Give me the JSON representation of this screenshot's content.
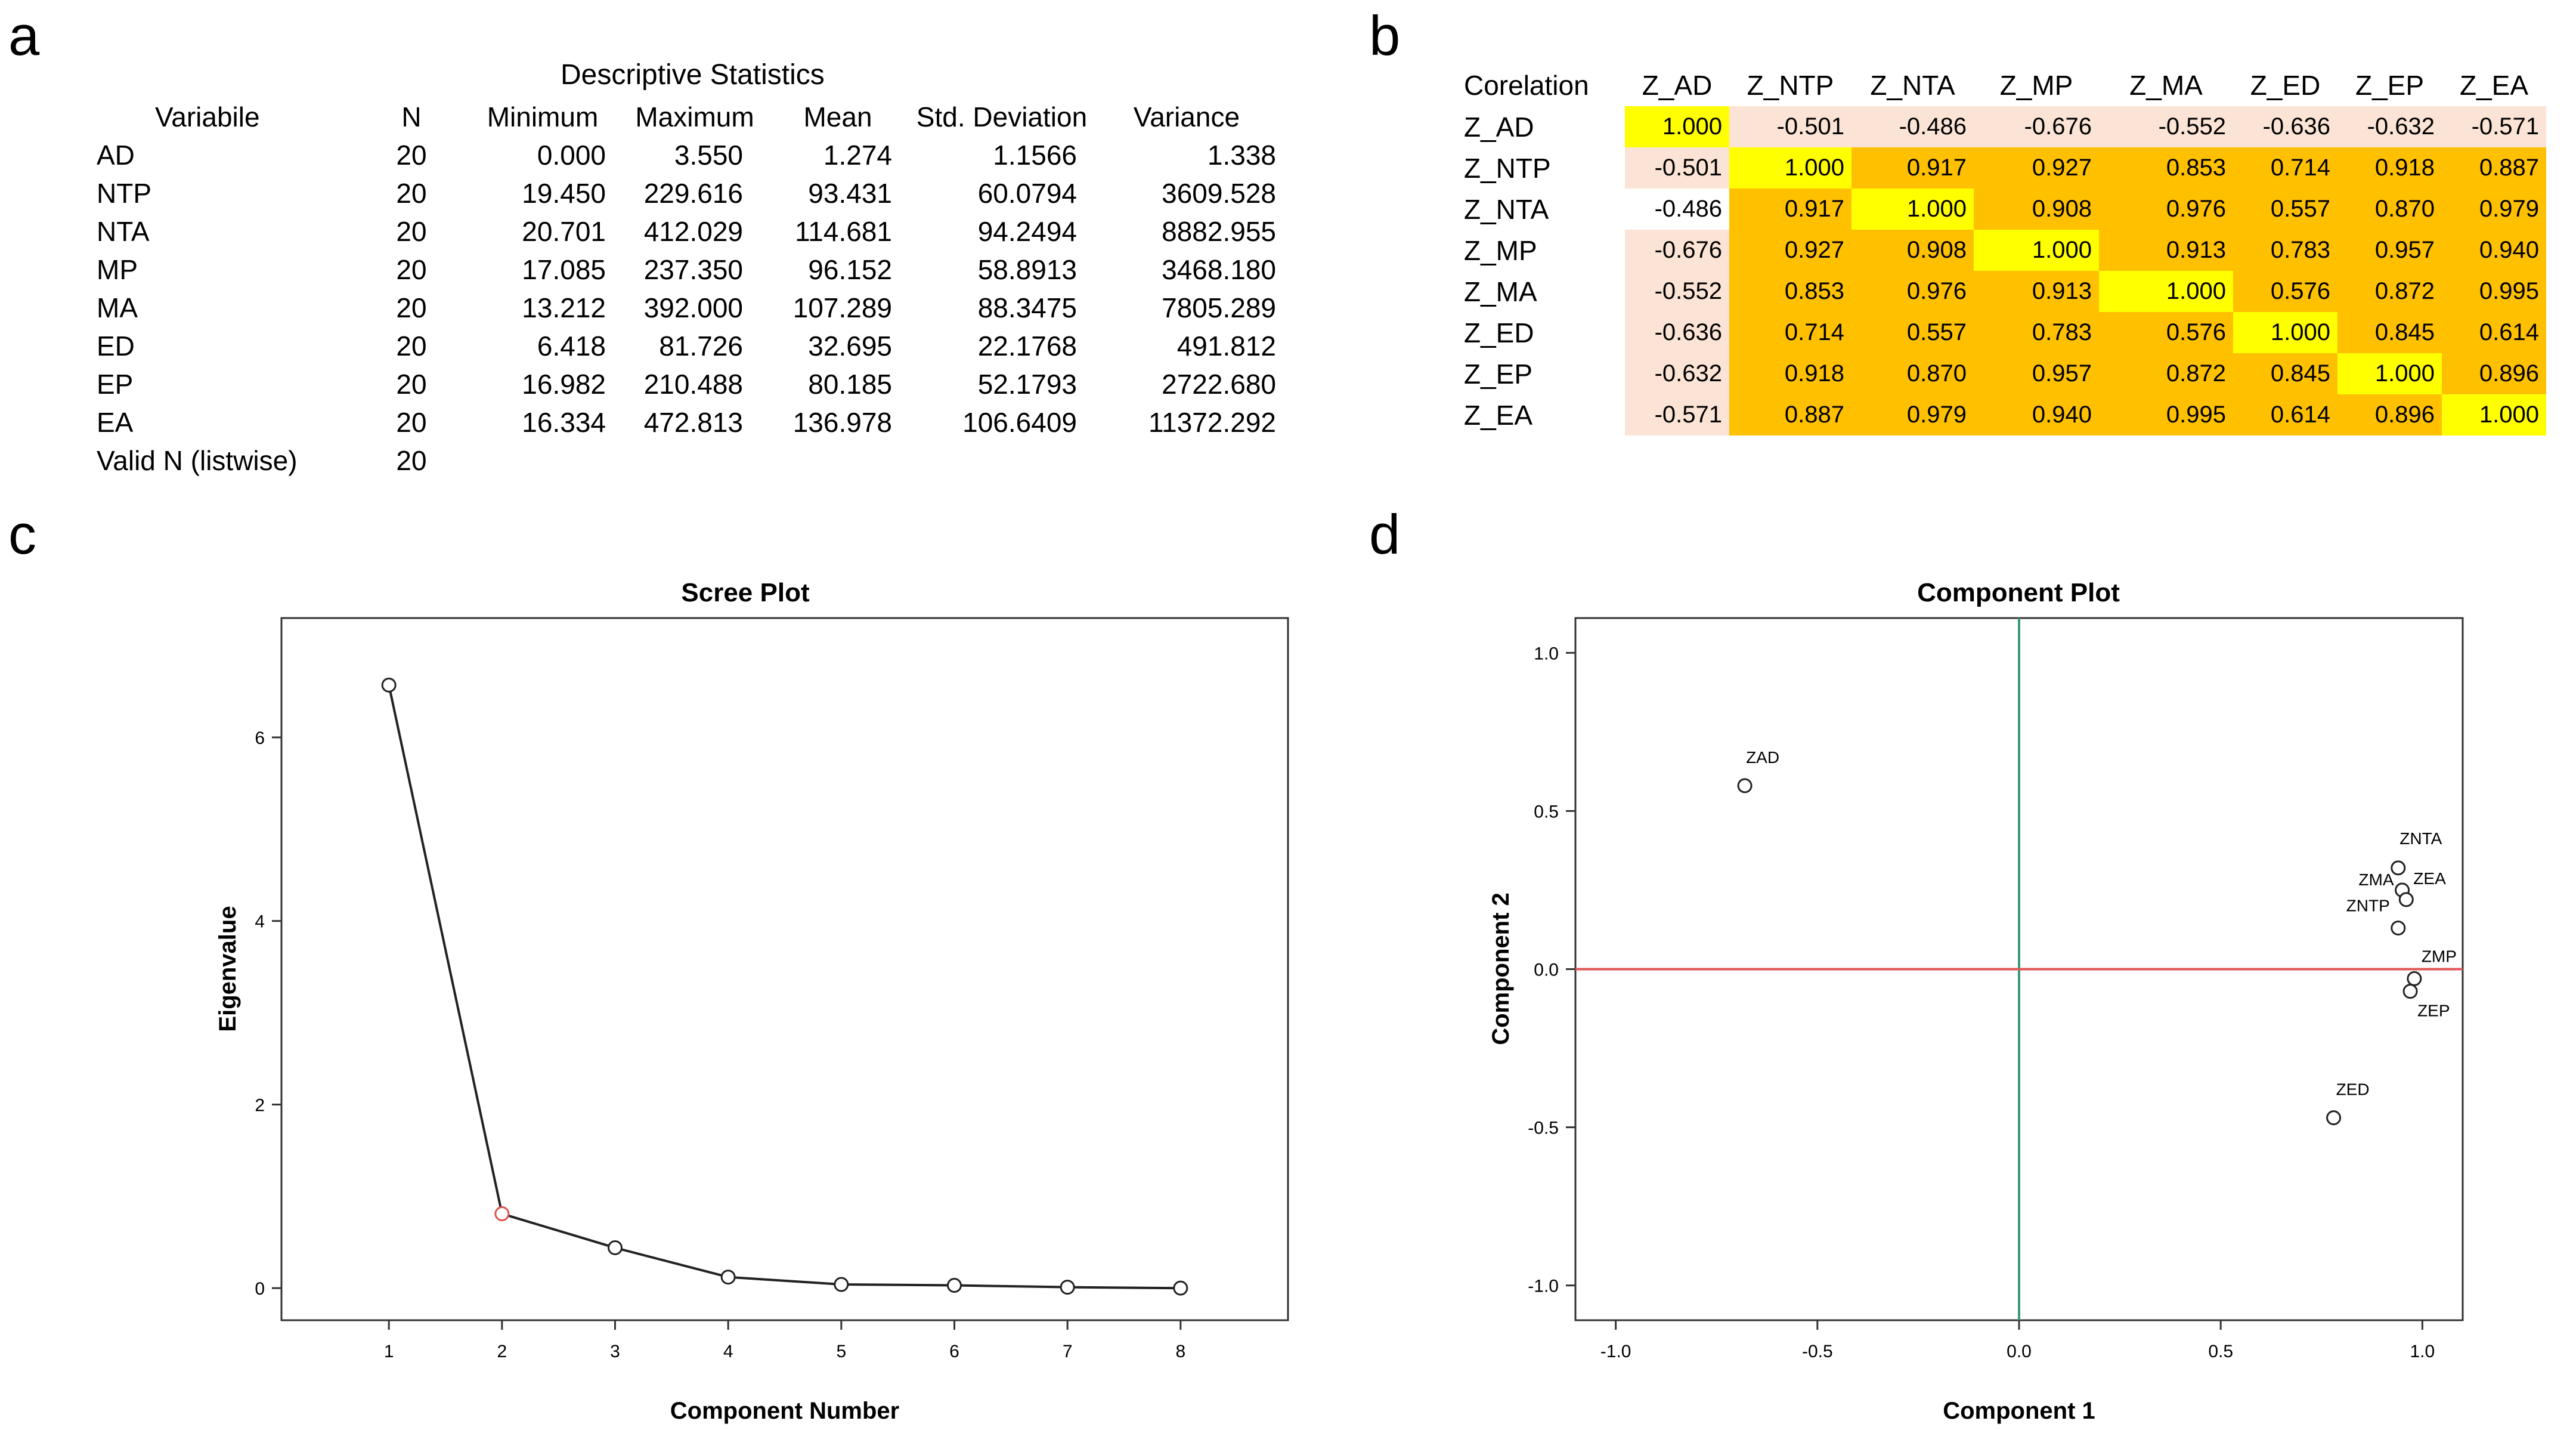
{
  "panels": {
    "a": "a",
    "b": "b",
    "c": "c",
    "d": "d"
  },
  "descriptive": {
    "title": "Descriptive Statistics",
    "headers": [
      "Variabile",
      "N",
      "Minimum",
      "Maximum",
      "Mean",
      "Std. Deviation",
      "Variance"
    ],
    "rows": [
      [
        "AD",
        "20",
        "0.000",
        "3.550",
        "1.274",
        "1.1566",
        "1.338"
      ],
      [
        "NTP",
        "20",
        "19.450",
        "229.616",
        "93.431",
        "60.0794",
        "3609.528"
      ],
      [
        "NTA",
        "20",
        "20.701",
        "412.029",
        "114.681",
        "94.2494",
        "8882.955"
      ],
      [
        "MP",
        "20",
        "17.085",
        "237.350",
        "96.152",
        "58.8913",
        "3468.180"
      ],
      [
        "MA",
        "20",
        "13.212",
        "392.000",
        "107.289",
        "88.3475",
        "7805.289"
      ],
      [
        "ED",
        "20",
        "6.418",
        "81.726",
        "32.695",
        "22.1768",
        "491.812"
      ],
      [
        "EP",
        "20",
        "16.982",
        "210.488",
        "80.185",
        "52.1793",
        "2722.680"
      ],
      [
        "EA",
        "20",
        "16.334",
        "472.813",
        "136.978",
        "106.6409",
        "11372.292"
      ],
      [
        "Valid N (listwise)",
        "20",
        "",
        "",
        "",
        "",
        ""
      ]
    ]
  },
  "correlation": {
    "corner": "Corelation",
    "headers": [
      "Z_AD",
      "Z_NTP",
      "Z_NTA",
      "Z_MP",
      "Z_MA",
      "Z_ED",
      "Z_EP",
      "Z_EA"
    ],
    "rows": [
      {
        "label": "Z_AD",
        "values": [
          "1.000",
          "-0.501",
          "-0.486",
          "-0.676",
          "-0.552",
          "-0.636",
          "-0.632",
          "-0.571"
        ]
      },
      {
        "label": "Z_NTP",
        "values": [
          "-0.501",
          "1.000",
          "0.917",
          "0.927",
          "0.853",
          "0.714",
          "0.918",
          "0.887"
        ]
      },
      {
        "label": "Z_NTA",
        "values": [
          "-0.486",
          "0.917",
          "1.000",
          "0.908",
          "0.976",
          "0.557",
          "0.870",
          "0.979"
        ]
      },
      {
        "label": "Z_MP",
        "values": [
          "-0.676",
          "0.927",
          "0.908",
          "1.000",
          "0.913",
          "0.783",
          "0.957",
          "0.940"
        ]
      },
      {
        "label": "Z_MA",
        "values": [
          "-0.552",
          "0.853",
          "0.976",
          "0.913",
          "1.000",
          "0.576",
          "0.872",
          "0.995"
        ]
      },
      {
        "label": "Z_ED",
        "values": [
          "-0.636",
          "0.714",
          "0.557",
          "0.783",
          "0.576",
          "1.000",
          "0.845",
          "0.614"
        ]
      },
      {
        "label": "Z_EP",
        "values": [
          "-0.632",
          "0.918",
          "0.870",
          "0.957",
          "0.872",
          "0.845",
          "1.000",
          "0.896"
        ]
      },
      {
        "label": "Z_EA",
        "values": [
          "-0.571",
          "0.887",
          "0.979",
          "0.940",
          "0.995",
          "0.614",
          "0.896",
          "1.000"
        ]
      }
    ],
    "colors": {
      "diagonal": "#ffff00",
      "high": "#ffc000",
      "negative": "#fbe4d5",
      "neutral": "#ffffff"
    }
  },
  "chart_data": [
    {
      "type": "line",
      "title": "Scree Plot",
      "xlabel": "Component Number",
      "ylabel": "Eigenvalue",
      "x": [
        1,
        2,
        3,
        4,
        5,
        6,
        7,
        8
      ],
      "values": [
        6.57,
        0.81,
        0.44,
        0.12,
        0.04,
        0.03,
        0.01,
        0.0
      ],
      "highlight_index": 1,
      "xlim": [
        0.05,
        8.95
      ],
      "ylim": [
        -0.35,
        7.3
      ],
      "xticks": [
        "1",
        "2",
        "3",
        "4",
        "5",
        "6",
        "7",
        "8"
      ],
      "yticks": [
        "0",
        "2",
        "4",
        "6"
      ],
      "colors": {
        "line": "#222222",
        "marker": "#222222",
        "highlight": "#d9534f"
      }
    },
    {
      "type": "scatter",
      "title": "Component Plot",
      "xlabel": "Component 1",
      "ylabel": "Component 2",
      "xlim": [
        -1.1,
        1.1
      ],
      "ylim": [
        -1.11,
        1.11
      ],
      "xticks": [
        "-1.0",
        "-0.5",
        "0.0",
        "0.5",
        "1.0"
      ],
      "yticks": [
        "1.0",
        "0.5",
        "0.0",
        "-0.5",
        "-1.0"
      ],
      "points": [
        {
          "label": "ZAD",
          "x": -0.68,
          "y": 0.58
        },
        {
          "label": "ZNTA",
          "x": 0.94,
          "y": 0.32
        },
        {
          "label": "ZMA",
          "x": 0.95,
          "y": 0.25
        },
        {
          "label": "ZEA",
          "x": 0.96,
          "y": 0.22
        },
        {
          "label": "ZNTP",
          "x": 0.94,
          "y": 0.13
        },
        {
          "label": "ZMP",
          "x": 0.98,
          "y": -0.03
        },
        {
          "label": "ZEP",
          "x": 0.97,
          "y": -0.07
        },
        {
          "label": "ZED",
          "x": 0.78,
          "y": -0.47
        }
      ],
      "colors": {
        "vline": "#3a9a78",
        "hline": "#e05555",
        "marker": "#222222"
      }
    }
  ]
}
